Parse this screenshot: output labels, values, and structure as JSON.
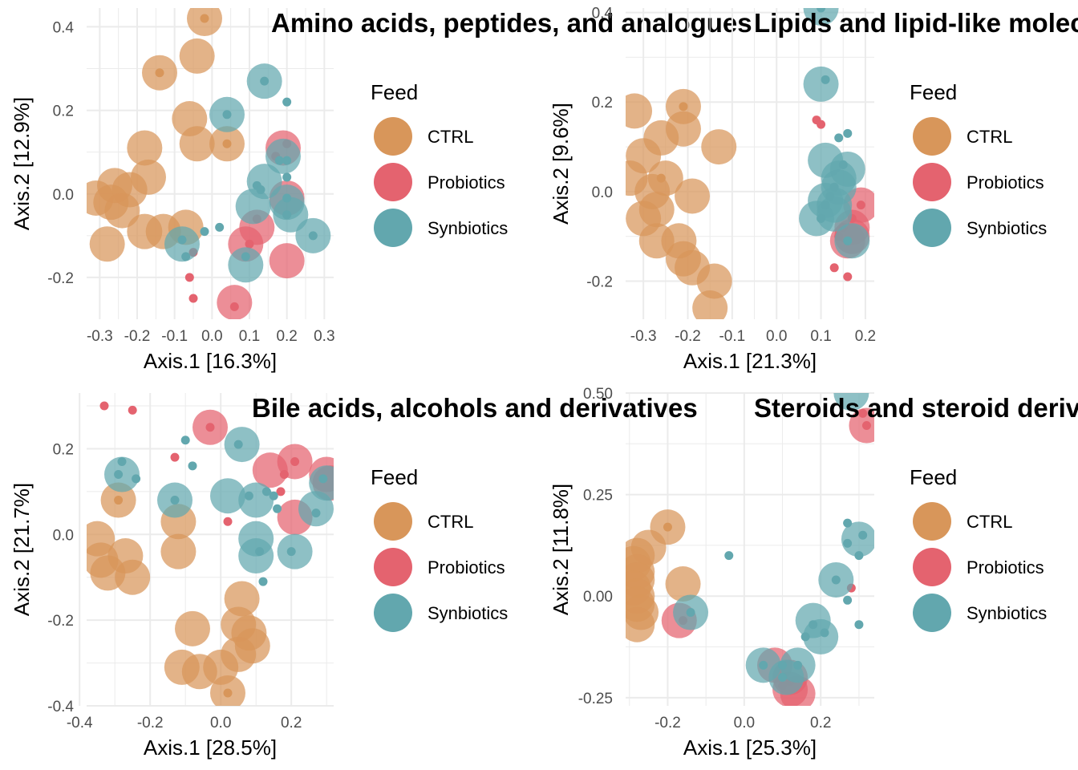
{
  "colors": {
    "CTRL": "#D8965A",
    "Probiotics": "#E4636F",
    "Synbiotics": "#62A7AE",
    "grid": "#EBEBEB",
    "text": "#000000",
    "tick": "#4D4D4D"
  },
  "legend": {
    "title": "Feed",
    "items": [
      "CTRL",
      "Probiotics",
      "Synbiotics"
    ]
  },
  "chart_data": [
    {
      "type": "scatter",
      "title": "Amino acids, peptides, and analogues",
      "xlabel": "Axis.1   [16.3%]",
      "ylabel": "Axis.2   [12.9%]",
      "xlim": [
        -0.335,
        0.325
      ],
      "ylim": [
        -0.3,
        0.445
      ],
      "xticks": [
        -0.3,
        -0.2,
        -0.1,
        0.0,
        0.1,
        0.2,
        0.3
      ],
      "xtick_labels": [
        "-0.3",
        "-0.2",
        "-0.1",
        "0.0",
        "0.1",
        "0.2",
        "0.3"
      ],
      "yticks": [
        -0.2,
        0.0,
        0.2,
        0.4
      ],
      "ytick_labels": [
        "-0.2",
        "0.0",
        "0.2",
        "0.4"
      ],
      "series": [
        {
          "name": "CTRL",
          "big": [
            [
              -0.02,
              0.42
            ],
            [
              -0.04,
              0.33
            ],
            [
              -0.14,
              0.29
            ],
            [
              -0.06,
              0.18
            ],
            [
              -0.04,
              0.12
            ],
            [
              0.04,
              0.12
            ],
            [
              -0.18,
              0.11
            ],
            [
              -0.17,
              0.04
            ],
            [
              -0.26,
              0.02
            ],
            [
              -0.22,
              0.01
            ],
            [
              -0.31,
              -0.01
            ],
            [
              -0.27,
              -0.02
            ],
            [
              -0.24,
              -0.04
            ],
            [
              -0.18,
              -0.09
            ],
            [
              -0.13,
              -0.09
            ],
            [
              -0.07,
              -0.08
            ],
            [
              -0.28,
              -0.12
            ]
          ],
          "small": [
            [
              -0.02,
              0.42
            ],
            [
              0.04,
              0.12
            ],
            [
              -0.14,
              0.29
            ]
          ]
        },
        {
          "name": "Probiotics",
          "big": [
            [
              0.2,
              -0.16
            ],
            [
              0.06,
              -0.26
            ],
            [
              0.12,
              -0.08
            ],
            [
              0.09,
              -0.12
            ],
            [
              0.2,
              -0.01
            ],
            [
              0.19,
              0.11
            ]
          ],
          "small": [
            [
              0.2,
              0.12
            ],
            [
              0.17,
              0.09
            ],
            [
              0.12,
              -0.06
            ],
            [
              0.1,
              -0.12
            ],
            [
              -0.06,
              -0.2
            ],
            [
              -0.05,
              -0.25
            ],
            [
              -0.05,
              -0.14
            ],
            [
              0.06,
              -0.27
            ]
          ]
        },
        {
          "name": "Synbiotics",
          "big": [
            [
              0.19,
              0.09
            ],
            [
              0.14,
              0.03
            ],
            [
              0.2,
              -0.02
            ],
            [
              0.11,
              -0.03
            ],
            [
              0.21,
              -0.05
            ],
            [
              0.09,
              -0.17
            ],
            [
              -0.08,
              -0.12
            ],
            [
              0.27,
              -0.1
            ],
            [
              0.14,
              0.27
            ],
            [
              0.04,
              0.19
            ]
          ],
          "small": [
            [
              0.14,
              0.27
            ],
            [
              0.2,
              0.22
            ],
            [
              0.04,
              0.19
            ],
            [
              0.2,
              0.08
            ],
            [
              0.18,
              0.08
            ],
            [
              0.2,
              0.04
            ],
            [
              0.12,
              0.02
            ],
            [
              0.13,
              0.01
            ],
            [
              0.2,
              -0.01
            ],
            [
              0.2,
              -0.05
            ],
            [
              0.27,
              -0.1
            ],
            [
              -0.02,
              -0.09
            ],
            [
              0.02,
              -0.08
            ],
            [
              -0.07,
              -0.15
            ],
            [
              -0.08,
              -0.11
            ],
            [
              0.09,
              -0.15
            ]
          ]
        }
      ]
    },
    {
      "type": "scatter",
      "title": "Lipids and lipid-like molecules",
      "xlabel": "Axis.1   [21.3%]",
      "ylabel": "Axis.2   [9.6%]",
      "xlim": [
        -0.34,
        0.22
      ],
      "ylim": [
        -0.285,
        0.41
      ],
      "xticks": [
        -0.3,
        -0.2,
        -0.1,
        0.0,
        0.1,
        0.2
      ],
      "xtick_labels": [
        "-0.3",
        "-0.2",
        "-0.1",
        "0.0",
        "0.1",
        "0.2"
      ],
      "yticks": [
        -0.2,
        0.0,
        0.2,
        0.4
      ],
      "ytick_labels": [
        "-0.2",
        "0.0",
        "0.2",
        "0.4"
      ],
      "series": [
        {
          "name": "CTRL",
          "big": [
            [
              -0.32,
              0.18
            ],
            [
              -0.21,
              0.19
            ],
            [
              -0.21,
              0.14
            ],
            [
              -0.26,
              0.12
            ],
            [
              -0.13,
              0.1
            ],
            [
              -0.3,
              0.08
            ],
            [
              -0.33,
              0.03
            ],
            [
              -0.25,
              0.03
            ],
            [
              -0.28,
              0.0
            ],
            [
              -0.19,
              -0.01
            ],
            [
              -0.27,
              -0.04
            ],
            [
              -0.3,
              -0.06
            ],
            [
              -0.27,
              -0.11
            ],
            [
              -0.22,
              -0.11
            ],
            [
              -0.21,
              -0.15
            ],
            [
              -0.19,
              -0.17
            ],
            [
              -0.14,
              -0.2
            ],
            [
              -0.15,
              -0.26
            ]
          ],
          "small": [
            [
              -0.21,
              0.19
            ],
            [
              -0.26,
              0.03
            ]
          ]
        },
        {
          "name": "Probiotics",
          "big": [
            [
              0.19,
              -0.03
            ],
            [
              0.17,
              -0.08
            ],
            [
              0.17,
              -0.1
            ],
            [
              0.16,
              -0.11
            ]
          ],
          "small": [
            [
              0.09,
              0.16
            ],
            [
              0.1,
              0.15
            ],
            [
              0.19,
              -0.03
            ],
            [
              0.17,
              -0.06
            ],
            [
              0.14,
              -0.1
            ],
            [
              0.13,
              -0.17
            ],
            [
              0.16,
              -0.19
            ],
            [
              0.15,
              -0.08
            ]
          ]
        },
        {
          "name": "Synbiotics",
          "big": [
            [
              0.11,
              0.07
            ],
            [
              0.16,
              0.05
            ],
            [
              0.14,
              0.03
            ],
            [
              0.14,
              0.01
            ],
            [
              0.11,
              -0.02
            ],
            [
              0.13,
              -0.03
            ],
            [
              0.09,
              -0.06
            ],
            [
              0.13,
              -0.05
            ],
            [
              0.17,
              -0.11
            ],
            [
              0.1,
              0.24
            ],
            [
              0.1,
              0.41
            ]
          ],
          "small": [
            [
              0.1,
              0.41
            ],
            [
              0.11,
              0.25
            ],
            [
              0.16,
              0.13
            ],
            [
              0.14,
              0.12
            ],
            [
              0.15,
              0.06
            ],
            [
              0.13,
              0.01
            ],
            [
              0.12,
              -0.01
            ],
            [
              0.11,
              -0.03
            ],
            [
              0.1,
              -0.06
            ],
            [
              0.16,
              -0.11
            ]
          ]
        }
      ]
    },
    {
      "type": "scatter",
      "title": "Bile acids, alcohols and derivatives",
      "xlabel": "Axis.1   [28.5%]",
      "ylabel": "Axis.2   [21.7%]",
      "xlim": [
        -0.38,
        0.32
      ],
      "ylim": [
        -0.4,
        0.33
      ],
      "xticks": [
        -0.4,
        -0.2,
        0.0,
        0.2
      ],
      "xtick_labels": [
        "-0.4",
        "-0.2",
        "0.0",
        "0.2"
      ],
      "yticks": [
        -0.4,
        -0.2,
        0.0,
        0.2
      ],
      "ytick_labels": [
        "-0.4",
        "-0.2",
        "0.0",
        "0.2"
      ],
      "series": [
        {
          "name": "CTRL",
          "big": [
            [
              -0.12,
              0.03
            ],
            [
              -0.29,
              0.08
            ],
            [
              -0.35,
              -0.01
            ],
            [
              -0.34,
              -0.06
            ],
            [
              -0.27,
              -0.05
            ],
            [
              -0.25,
              -0.1
            ],
            [
              -0.32,
              -0.09
            ],
            [
              -0.12,
              -0.04
            ],
            [
              0.06,
              -0.15
            ],
            [
              0.05,
              -0.21
            ],
            [
              0.08,
              -0.23
            ],
            [
              0.09,
              -0.26
            ],
            [
              0.05,
              -0.28
            ],
            [
              -0.08,
              -0.22
            ],
            [
              -0.11,
              -0.31
            ],
            [
              -0.06,
              -0.32
            ],
            [
              0.0,
              -0.31
            ],
            [
              0.02,
              -0.37
            ]
          ],
          "small": [
            [
              -0.29,
              0.08
            ],
            [
              0.02,
              -0.37
            ]
          ]
        },
        {
          "name": "Probiotics",
          "big": [
            [
              -0.03,
              0.25
            ],
            [
              0.21,
              0.17
            ],
            [
              0.3,
              0.14
            ],
            [
              0.31,
              0.12
            ],
            [
              0.14,
              0.15
            ],
            [
              0.21,
              0.04
            ]
          ],
          "small": [
            [
              -0.33,
              0.3
            ],
            [
              -0.25,
              0.29
            ],
            [
              -0.03,
              0.25
            ],
            [
              -0.13,
              0.18
            ],
            [
              0.21,
              0.17
            ],
            [
              0.18,
              0.14
            ],
            [
              0.02,
              0.03
            ],
            [
              0.17,
              0.1
            ]
          ]
        },
        {
          "name": "Synbiotics",
          "big": [
            [
              0.02,
              0.09
            ],
            [
              0.1,
              0.08
            ],
            [
              0.27,
              0.06
            ],
            [
              0.1,
              -0.01
            ],
            [
              0.1,
              -0.05
            ],
            [
              0.21,
              -0.04
            ],
            [
              0.3,
              0.12
            ],
            [
              -0.13,
              0.08
            ],
            [
              0.06,
              0.21
            ],
            [
              -0.28,
              0.14
            ]
          ],
          "small": [
            [
              -0.1,
              0.22
            ],
            [
              0.05,
              0.21
            ],
            [
              -0.28,
              0.17
            ],
            [
              -0.24,
              0.13
            ],
            [
              -0.29,
              0.14
            ],
            [
              -0.08,
              0.16
            ],
            [
              0.13,
              0.1
            ],
            [
              0.08,
              0.09
            ],
            [
              0.15,
              0.09
            ],
            [
              0.16,
              0.06
            ],
            [
              0.27,
              0.05
            ],
            [
              -0.13,
              0.08
            ],
            [
              0.29,
              0.13
            ],
            [
              0.11,
              -0.04
            ],
            [
              0.2,
              -0.04
            ],
            [
              0.12,
              -0.11
            ]
          ]
        }
      ]
    },
    {
      "type": "scatter",
      "title": "Steroids and steroid derivatives",
      "xlabel": "Axis.1   [25.3%]",
      "ylabel": "Axis.2   [11.8%]",
      "xlim": [
        -0.31,
        0.34
      ],
      "ylim": [
        -0.27,
        0.5
      ],
      "xticks": [
        -0.2,
        0.0,
        0.2
      ],
      "xtick_labels": [
        "-0.2",
        "0.0",
        "0.2"
      ],
      "yticks": [
        -0.25,
        0.0,
        0.25,
        0.5
      ],
      "ytick_labels": [
        "-0.25",
        "0.00",
        "0.25",
        "0.50"
      ],
      "series": [
        {
          "name": "CTRL",
          "big": [
            [
              -0.2,
              0.17
            ],
            [
              -0.25,
              0.12
            ],
            [
              -0.28,
              0.1
            ],
            [
              -0.29,
              0.08
            ],
            [
              -0.28,
              0.06
            ],
            [
              -0.28,
              0.04
            ],
            [
              -0.29,
              0.02
            ],
            [
              -0.28,
              0.0
            ],
            [
              -0.28,
              -0.02
            ],
            [
              -0.27,
              -0.04
            ],
            [
              -0.16,
              0.03
            ],
            [
              -0.28,
              -0.07
            ]
          ],
          "small": [
            [
              -0.2,
              0.17
            ]
          ]
        },
        {
          "name": "Probiotics",
          "big": [
            [
              0.32,
              0.42
            ],
            [
              0.08,
              -0.17
            ],
            [
              0.12,
              -0.2
            ],
            [
              0.12,
              -0.23
            ],
            [
              0.14,
              -0.24
            ],
            [
              -0.17,
              -0.06
            ]
          ],
          "small": [
            [
              0.31,
              0.45
            ],
            [
              0.32,
              0.42
            ],
            [
              0.28,
              0.02
            ],
            [
              0.12,
              -0.21
            ],
            [
              -0.16,
              -0.06
            ],
            [
              0.1,
              -0.22
            ]
          ]
        },
        {
          "name": "Synbiotics",
          "big": [
            [
              0.28,
              0.5
            ],
            [
              0.24,
              0.04
            ],
            [
              0.18,
              -0.06
            ],
            [
              0.2,
              -0.1
            ],
            [
              0.14,
              -0.17
            ],
            [
              0.05,
              -0.17
            ],
            [
              0.11,
              -0.2
            ],
            [
              -0.14,
              -0.04
            ],
            [
              0.3,
              0.14
            ]
          ],
          "small": [
            [
              0.27,
              0.18
            ],
            [
              0.31,
              0.15
            ],
            [
              0.27,
              0.13
            ],
            [
              0.3,
              0.1
            ],
            [
              -0.04,
              0.1
            ],
            [
              0.27,
              -0.01
            ],
            [
              0.24,
              0.04
            ],
            [
              0.18,
              -0.07
            ],
            [
              0.21,
              -0.09
            ],
            [
              0.16,
              -0.1
            ],
            [
              0.3,
              -0.07
            ],
            [
              0.1,
              -0.17
            ],
            [
              0.05,
              -0.17
            ],
            [
              0.14,
              -0.17
            ],
            [
              0.1,
              -0.2
            ],
            [
              -0.14,
              -0.04
            ]
          ]
        }
      ]
    }
  ]
}
